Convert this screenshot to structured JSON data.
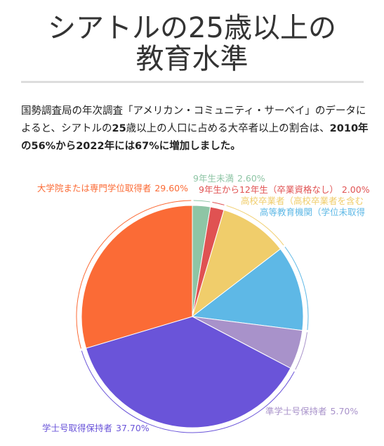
{
  "page": {
    "title_lines": [
      "シアトルの25歳以上の",
      "教育水準"
    ],
    "intro": [
      {
        "text": "国勢調査局の年次調査「アメリカン・コミュニティ・サーベイ」のデータによると、シアトルの",
        "bold": false
      },
      {
        "text": "25",
        "bold": true
      },
      {
        "text": "歳以上の人口に占める大卒者以上の割合は、",
        "bold": false
      },
      {
        "text": "2010年の56%から2022年には67%に増加しました。",
        "bold": true
      }
    ]
  },
  "chart_data": {
    "type": "pie",
    "categories": [
      "9年生未満",
      "9年生から12年生（卒業資格なし）",
      "高校卒業者（高校卒業者を含む",
      "高等教育機関（学位未取得",
      "準学士号保持者",
      "学士号取得保持者",
      "大学院または専門学位取得者"
    ],
    "values": [
      2.6,
      2.0,
      10.0,
      12.4,
      5.7,
      37.7,
      29.6
    ],
    "value_labels": [
      "2.60%",
      "2.00%",
      null,
      null,
      "5.70%",
      "37.70%",
      "29.60%"
    ],
    "colors": [
      "#8ec5a5",
      "#e05252",
      "#f0cd6b",
      "#5eb8e6",
      "#a892ca",
      "#6a54d9",
      "#fb6b36"
    ]
  }
}
